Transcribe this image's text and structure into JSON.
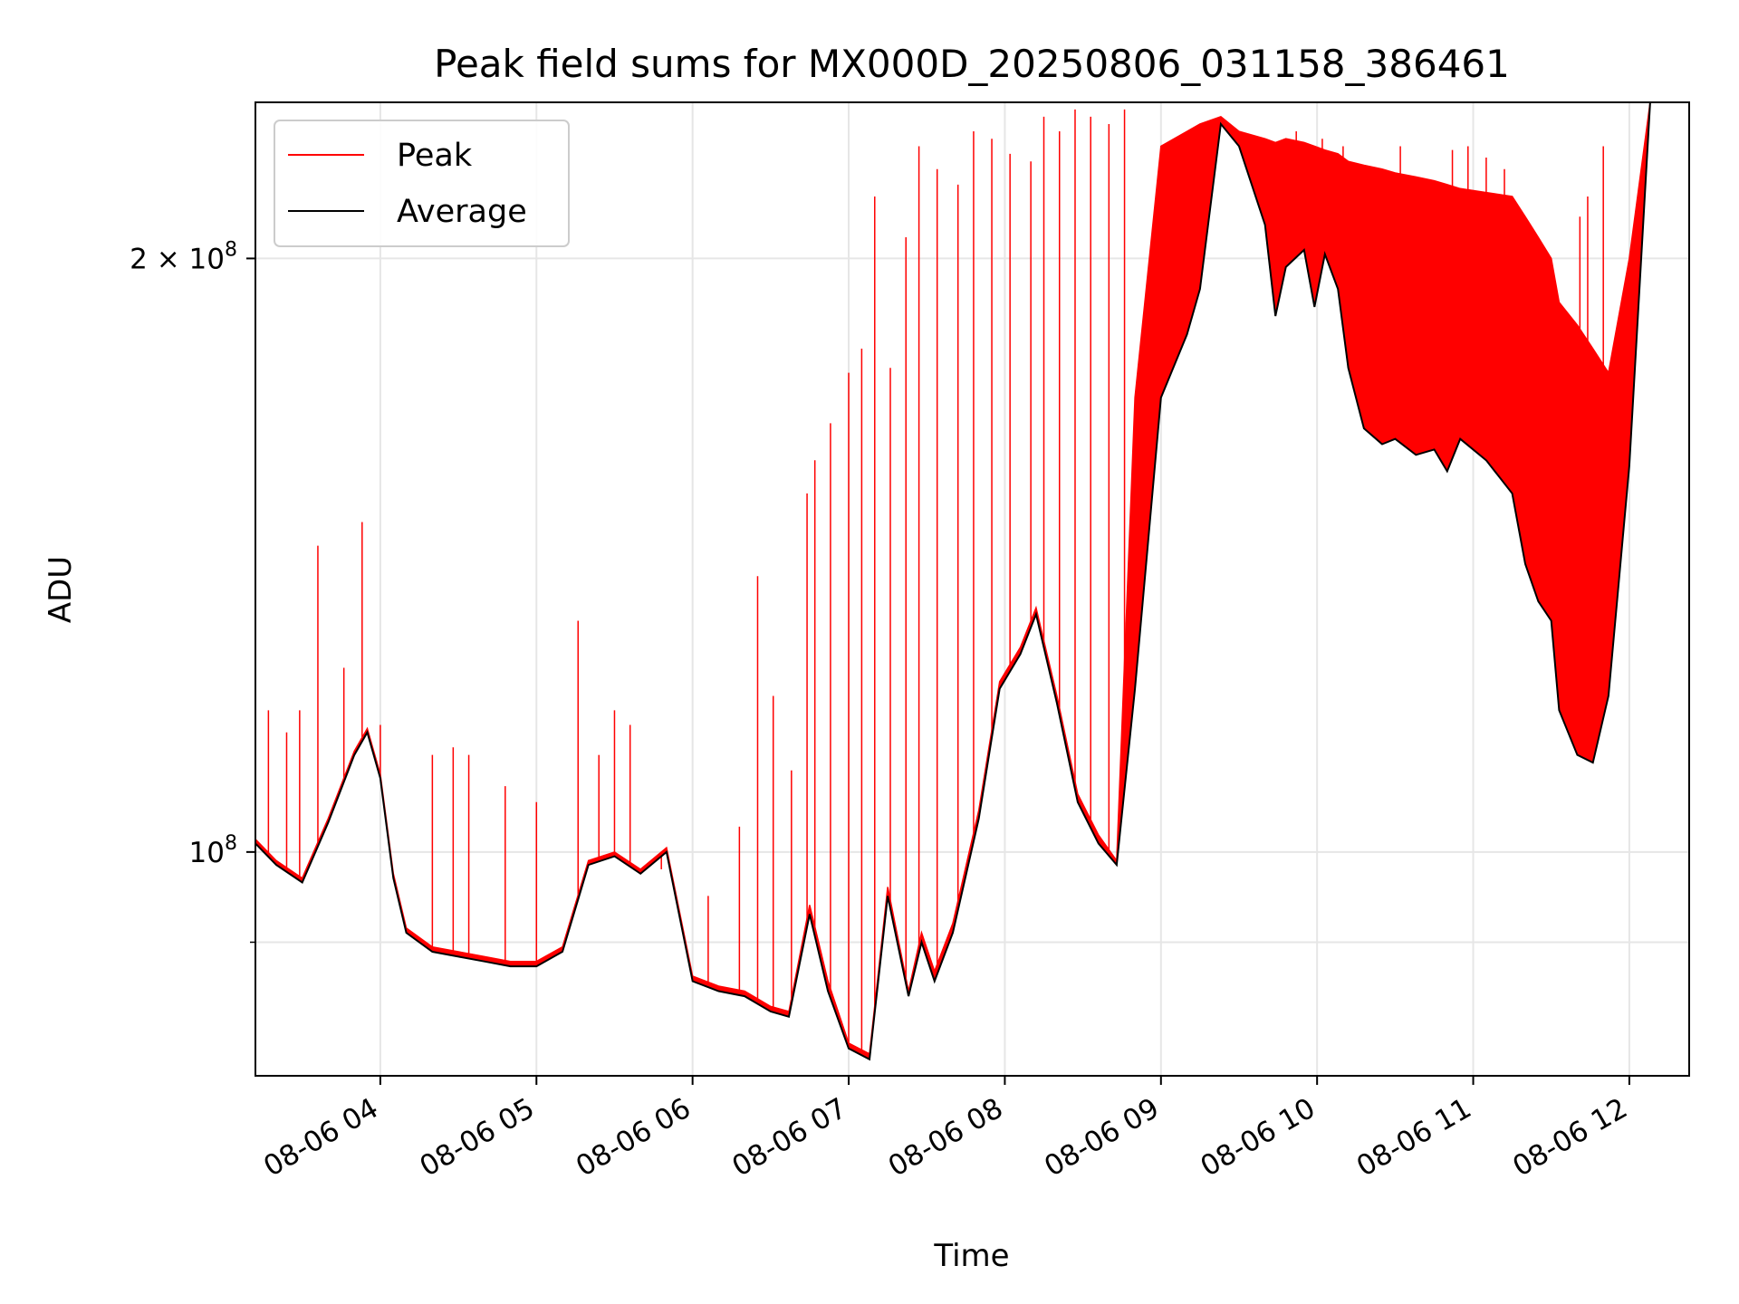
{
  "chart_data": {
    "type": "line",
    "title": "Peak field sums for MX000D_20250806_031158_386461",
    "xlabel": "Time",
    "ylabel": "ADU",
    "yscale": "log",
    "grid": true,
    "legend_position": "top-left",
    "xlim": [
      "2025-08-06T03:12",
      "2025-08-06T12:23"
    ],
    "ylim": [
      77000000,
      240000000
    ],
    "x_ticks": [
      {
        "value": "2025-08-06T04:00",
        "label": "08-06 04"
      },
      {
        "value": "2025-08-06T05:00",
        "label": "08-06 05"
      },
      {
        "value": "2025-08-06T06:00",
        "label": "08-06 06"
      },
      {
        "value": "2025-08-06T07:00",
        "label": "08-06 07"
      },
      {
        "value": "2025-08-06T08:00",
        "label": "08-06 08"
      },
      {
        "value": "2025-08-06T09:00",
        "label": "08-06 09"
      },
      {
        "value": "2025-08-06T10:00",
        "label": "08-06 10"
      },
      {
        "value": "2025-08-06T11:00",
        "label": "08-06 11"
      },
      {
        "value": "2025-08-06T12:00",
        "label": "08-06 12"
      }
    ],
    "y_major_ticks": [
      {
        "value": 100000000,
        "base": "10",
        "exp": "8",
        "mantissa": ""
      },
      {
        "value": 200000000,
        "base": "10",
        "exp": "8",
        "mantissa": "2 × "
      }
    ],
    "y_minor_ticks": [
      90000000
    ],
    "colors": {
      "peak": "#ff0000",
      "average": "#000000",
      "grid": "#e6e6e6"
    },
    "series": [
      {
        "name": "Average",
        "color": "#000000",
        "x": [
          "2025-08-06T03:12",
          "2025-08-06T03:20",
          "2025-08-06T03:30",
          "2025-08-06T03:40",
          "2025-08-06T03:50",
          "2025-08-06T03:55",
          "2025-08-06T04:00",
          "2025-08-06T04:05",
          "2025-08-06T04:10",
          "2025-08-06T04:20",
          "2025-08-06T04:30",
          "2025-08-06T04:40",
          "2025-08-06T04:50",
          "2025-08-06T05:00",
          "2025-08-06T05:10",
          "2025-08-06T05:20",
          "2025-08-06T05:30",
          "2025-08-06T05:40",
          "2025-08-06T05:50",
          "2025-08-06T06:00",
          "2025-08-06T06:10",
          "2025-08-06T06:20",
          "2025-08-06T06:30",
          "2025-08-06T06:37",
          "2025-08-06T06:45",
          "2025-08-06T06:52",
          "2025-08-06T07:00",
          "2025-08-06T07:08",
          "2025-08-06T07:15",
          "2025-08-06T07:23",
          "2025-08-06T07:28",
          "2025-08-06T07:33",
          "2025-08-06T07:40",
          "2025-08-06T07:50",
          "2025-08-06T07:58",
          "2025-08-06T08:06",
          "2025-08-06T08:12",
          "2025-08-06T08:20",
          "2025-08-06T08:28",
          "2025-08-06T08:36",
          "2025-08-06T08:43",
          "2025-08-06T08:50",
          "2025-08-06T09:00",
          "2025-08-06T09:10",
          "2025-08-06T09:15",
          "2025-08-06T09:23",
          "2025-08-06T09:30",
          "2025-08-06T09:40",
          "2025-08-06T09:44",
          "2025-08-06T09:48",
          "2025-08-06T09:55",
          "2025-08-06T09:59",
          "2025-08-06T10:03",
          "2025-08-06T10:08",
          "2025-08-06T10:12",
          "2025-08-06T10:18",
          "2025-08-06T10:25",
          "2025-08-06T10:30",
          "2025-08-06T10:38",
          "2025-08-06T10:45",
          "2025-08-06T10:50",
          "2025-08-06T10:55",
          "2025-08-06T11:05",
          "2025-08-06T11:15",
          "2025-08-06T11:20",
          "2025-08-06T11:25",
          "2025-08-06T11:30",
          "2025-08-06T11:33",
          "2025-08-06T11:40",
          "2025-08-06T11:46",
          "2025-08-06T11:52",
          "2025-08-06T12:00",
          "2025-08-06T12:08"
        ],
        "values": [
          101000000,
          98500000,
          96500000,
          103500000,
          112000000,
          115000000,
          109000000,
          97000000,
          91000000,
          89000000,
          88500000,
          88000000,
          87500000,
          87500000,
          89000000,
          98500000,
          99500000,
          97500000,
          100000000,
          86000000,
          85000000,
          84500000,
          83000000,
          82500000,
          93000000,
          85000000,
          79500000,
          78500000,
          95000000,
          84500000,
          90000000,
          86000000,
          91000000,
          104000000,
          121000000,
          126000000,
          132000000,
          119000000,
          106000000,
          101000000,
          98500000,
          121000000,
          170000000,
          183000000,
          193000000,
          234000000,
          228000000,
          208000000,
          187000000,
          198000000,
          202000000,
          189000000,
          201000000,
          193000000,
          176000000,
          164000000,
          161000000,
          162000000,
          159000000,
          160000000,
          156000000,
          162000000,
          158000000,
          152000000,
          140000000,
          134000000,
          131000000,
          118000000,
          112000000,
          111000000,
          120000000,
          157000000,
          240000000
        ]
      },
      {
        "name": "Peak",
        "color": "#ff0000",
        "x": [
          "2025-08-06T03:12",
          "2025-08-06T03:20",
          "2025-08-06T03:30",
          "2025-08-06T03:40",
          "2025-08-06T03:50",
          "2025-08-06T03:55",
          "2025-08-06T04:00",
          "2025-08-06T04:05",
          "2025-08-06T04:10",
          "2025-08-06T04:20",
          "2025-08-06T04:30",
          "2025-08-06T04:40",
          "2025-08-06T04:50",
          "2025-08-06T05:00",
          "2025-08-06T05:10",
          "2025-08-06T05:20",
          "2025-08-06T05:30",
          "2025-08-06T05:40",
          "2025-08-06T05:50",
          "2025-08-06T06:00",
          "2025-08-06T06:10",
          "2025-08-06T06:20",
          "2025-08-06T06:30",
          "2025-08-06T06:37",
          "2025-08-06T06:45",
          "2025-08-06T06:52",
          "2025-08-06T07:00",
          "2025-08-06T07:08",
          "2025-08-06T07:15",
          "2025-08-06T07:23",
          "2025-08-06T07:28",
          "2025-08-06T07:33",
          "2025-08-06T07:40",
          "2025-08-06T07:50",
          "2025-08-06T07:58",
          "2025-08-06T08:06",
          "2025-08-06T08:12",
          "2025-08-06T08:20",
          "2025-08-06T08:28",
          "2025-08-06T08:36",
          "2025-08-06T08:43",
          "2025-08-06T08:50",
          "2025-08-06T09:00",
          "2025-08-06T09:10",
          "2025-08-06T09:15",
          "2025-08-06T09:23",
          "2025-08-06T09:30",
          "2025-08-06T09:40",
          "2025-08-06T09:44",
          "2025-08-06T09:48",
          "2025-08-06T09:55",
          "2025-08-06T09:59",
          "2025-08-06T10:03",
          "2025-08-06T10:08",
          "2025-08-06T10:12",
          "2025-08-06T10:18",
          "2025-08-06T10:25",
          "2025-08-06T10:30",
          "2025-08-06T10:38",
          "2025-08-06T10:45",
          "2025-08-06T10:50",
          "2025-08-06T10:55",
          "2025-08-06T11:05",
          "2025-08-06T11:15",
          "2025-08-06T11:20",
          "2025-08-06T11:25",
          "2025-08-06T11:30",
          "2025-08-06T11:33",
          "2025-08-06T11:40",
          "2025-08-06T11:46",
          "2025-08-06T11:52",
          "2025-08-06T12:00",
          "2025-08-06T12:08"
        ],
        "values": [
          101500000,
          99000000,
          97000000,
          104000000,
          112500000,
          115500000,
          109500000,
          97500000,
          91500000,
          89500000,
          89000000,
          88500000,
          88000000,
          88000000,
          89500000,
          99000000,
          100000000,
          98000000,
          100500000,
          86500000,
          85500000,
          85000000,
          83500000,
          83000000,
          94000000,
          86000000,
          80000000,
          79000000,
          96000000,
          85000000,
          91000000,
          87000000,
          92000000,
          105000000,
          122000000,
          127000000,
          133000000,
          120000000,
          107000000,
          102000000,
          99000000,
          170000000,
          228000000,
          232000000,
          234000000,
          236000000,
          232000000,
          230000000,
          229000000,
          230000000,
          229000000,
          228000000,
          227000000,
          226000000,
          224000000,
          223000000,
          222000000,
          221000000,
          220000000,
          219000000,
          218000000,
          217000000,
          216000000,
          215000000,
          210000000,
          205000000,
          200000000,
          190000000,
          185000000,
          180000000,
          175000000,
          200000000,
          240000000
        ],
        "spikes": [
          {
            "x": "2025-08-06T03:17",
            "y": 118000000
          },
          {
            "x": "2025-08-06T03:24",
            "y": 115000000
          },
          {
            "x": "2025-08-06T03:29",
            "y": 118000000
          },
          {
            "x": "2025-08-06T03:36",
            "y": 143000000
          },
          {
            "x": "2025-08-06T03:46",
            "y": 124000000
          },
          {
            "x": "2025-08-06T03:53",
            "y": 147000000
          },
          {
            "x": "2025-08-06T04:00",
            "y": 116000000
          },
          {
            "x": "2025-08-06T04:20",
            "y": 112000000
          },
          {
            "x": "2025-08-06T04:28",
            "y": 113000000
          },
          {
            "x": "2025-08-06T04:34",
            "y": 112000000
          },
          {
            "x": "2025-08-06T04:48",
            "y": 108000000
          },
          {
            "x": "2025-08-06T05:00",
            "y": 106000000
          },
          {
            "x": "2025-08-06T05:16",
            "y": 131000000
          },
          {
            "x": "2025-08-06T05:24",
            "y": 112000000
          },
          {
            "x": "2025-08-06T05:30",
            "y": 118000000
          },
          {
            "x": "2025-08-06T05:36",
            "y": 116000000
          },
          {
            "x": "2025-08-06T05:48",
            "y": 98000000
          },
          {
            "x": "2025-08-06T06:06",
            "y": 95000000
          },
          {
            "x": "2025-08-06T06:18",
            "y": 103000000
          },
          {
            "x": "2025-08-06T06:25",
            "y": 138000000
          },
          {
            "x": "2025-08-06T06:31",
            "y": 120000000
          },
          {
            "x": "2025-08-06T06:38",
            "y": 110000000
          },
          {
            "x": "2025-08-06T06:44",
            "y": 152000000
          },
          {
            "x": "2025-08-06T06:47",
            "y": 158000000
          },
          {
            "x": "2025-08-06T06:53",
            "y": 165000000
          },
          {
            "x": "2025-08-06T07:00",
            "y": 175000000
          },
          {
            "x": "2025-08-06T07:05",
            "y": 180000000
          },
          {
            "x": "2025-08-06T07:10",
            "y": 215000000
          },
          {
            "x": "2025-08-06T07:16",
            "y": 176000000
          },
          {
            "x": "2025-08-06T07:22",
            "y": 205000000
          },
          {
            "x": "2025-08-06T07:27",
            "y": 228000000
          },
          {
            "x": "2025-08-06T07:34",
            "y": 222000000
          },
          {
            "x": "2025-08-06T07:42",
            "y": 218000000
          },
          {
            "x": "2025-08-06T07:48",
            "y": 232000000
          },
          {
            "x": "2025-08-06T07:55",
            "y": 230000000
          },
          {
            "x": "2025-08-06T08:02",
            "y": 226000000
          },
          {
            "x": "2025-08-06T08:10",
            "y": 224000000
          },
          {
            "x": "2025-08-06T08:15",
            "y": 236000000
          },
          {
            "x": "2025-08-06T08:21",
            "y": 232000000
          },
          {
            "x": "2025-08-06T08:27",
            "y": 238000000
          },
          {
            "x": "2025-08-06T08:33",
            "y": 236000000
          },
          {
            "x": "2025-08-06T08:40",
            "y": 234000000
          },
          {
            "x": "2025-08-06T08:46",
            "y": 238000000
          },
          {
            "x": "2025-08-06T09:52",
            "y": 232000000
          },
          {
            "x": "2025-08-06T10:02",
            "y": 230000000
          },
          {
            "x": "2025-08-06T10:10",
            "y": 228000000
          },
          {
            "x": "2025-08-06T10:20",
            "y": 222000000
          },
          {
            "x": "2025-08-06T10:32",
            "y": 228000000
          },
          {
            "x": "2025-08-06T10:40",
            "y": 206000000
          },
          {
            "x": "2025-08-06T10:52",
            "y": 227000000
          },
          {
            "x": "2025-08-06T10:58",
            "y": 228000000
          },
          {
            "x": "2025-08-06T11:05",
            "y": 225000000
          },
          {
            "x": "2025-08-06T11:12",
            "y": 222000000
          },
          {
            "x": "2025-08-06T11:31",
            "y": 190000000
          },
          {
            "x": "2025-08-06T11:41",
            "y": 210000000
          },
          {
            "x": "2025-08-06T11:44",
            "y": 215000000
          },
          {
            "x": "2025-08-06T11:50",
            "y": 228000000
          }
        ]
      }
    ]
  }
}
